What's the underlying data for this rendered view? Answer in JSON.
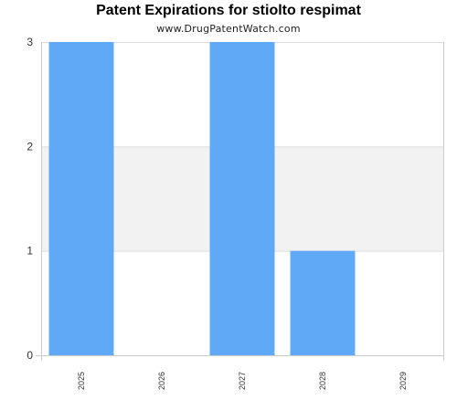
{
  "chart_data": {
    "type": "bar",
    "title": "Patent Expirations for stiolto respimat",
    "subtitle": "www.DrugPatentWatch.com",
    "categories": [
      "2025",
      "2026",
      "2027",
      "2028",
      "2029"
    ],
    "values": [
      3,
      0,
      3,
      1,
      0
    ],
    "ylim": [
      0,
      3
    ],
    "yticks": [
      "0",
      "1",
      "2",
      "3"
    ],
    "grid": true,
    "bar_color": "#60a9f6",
    "band_color": "#f2f2f2",
    "grid_color": "#dddddd"
  }
}
